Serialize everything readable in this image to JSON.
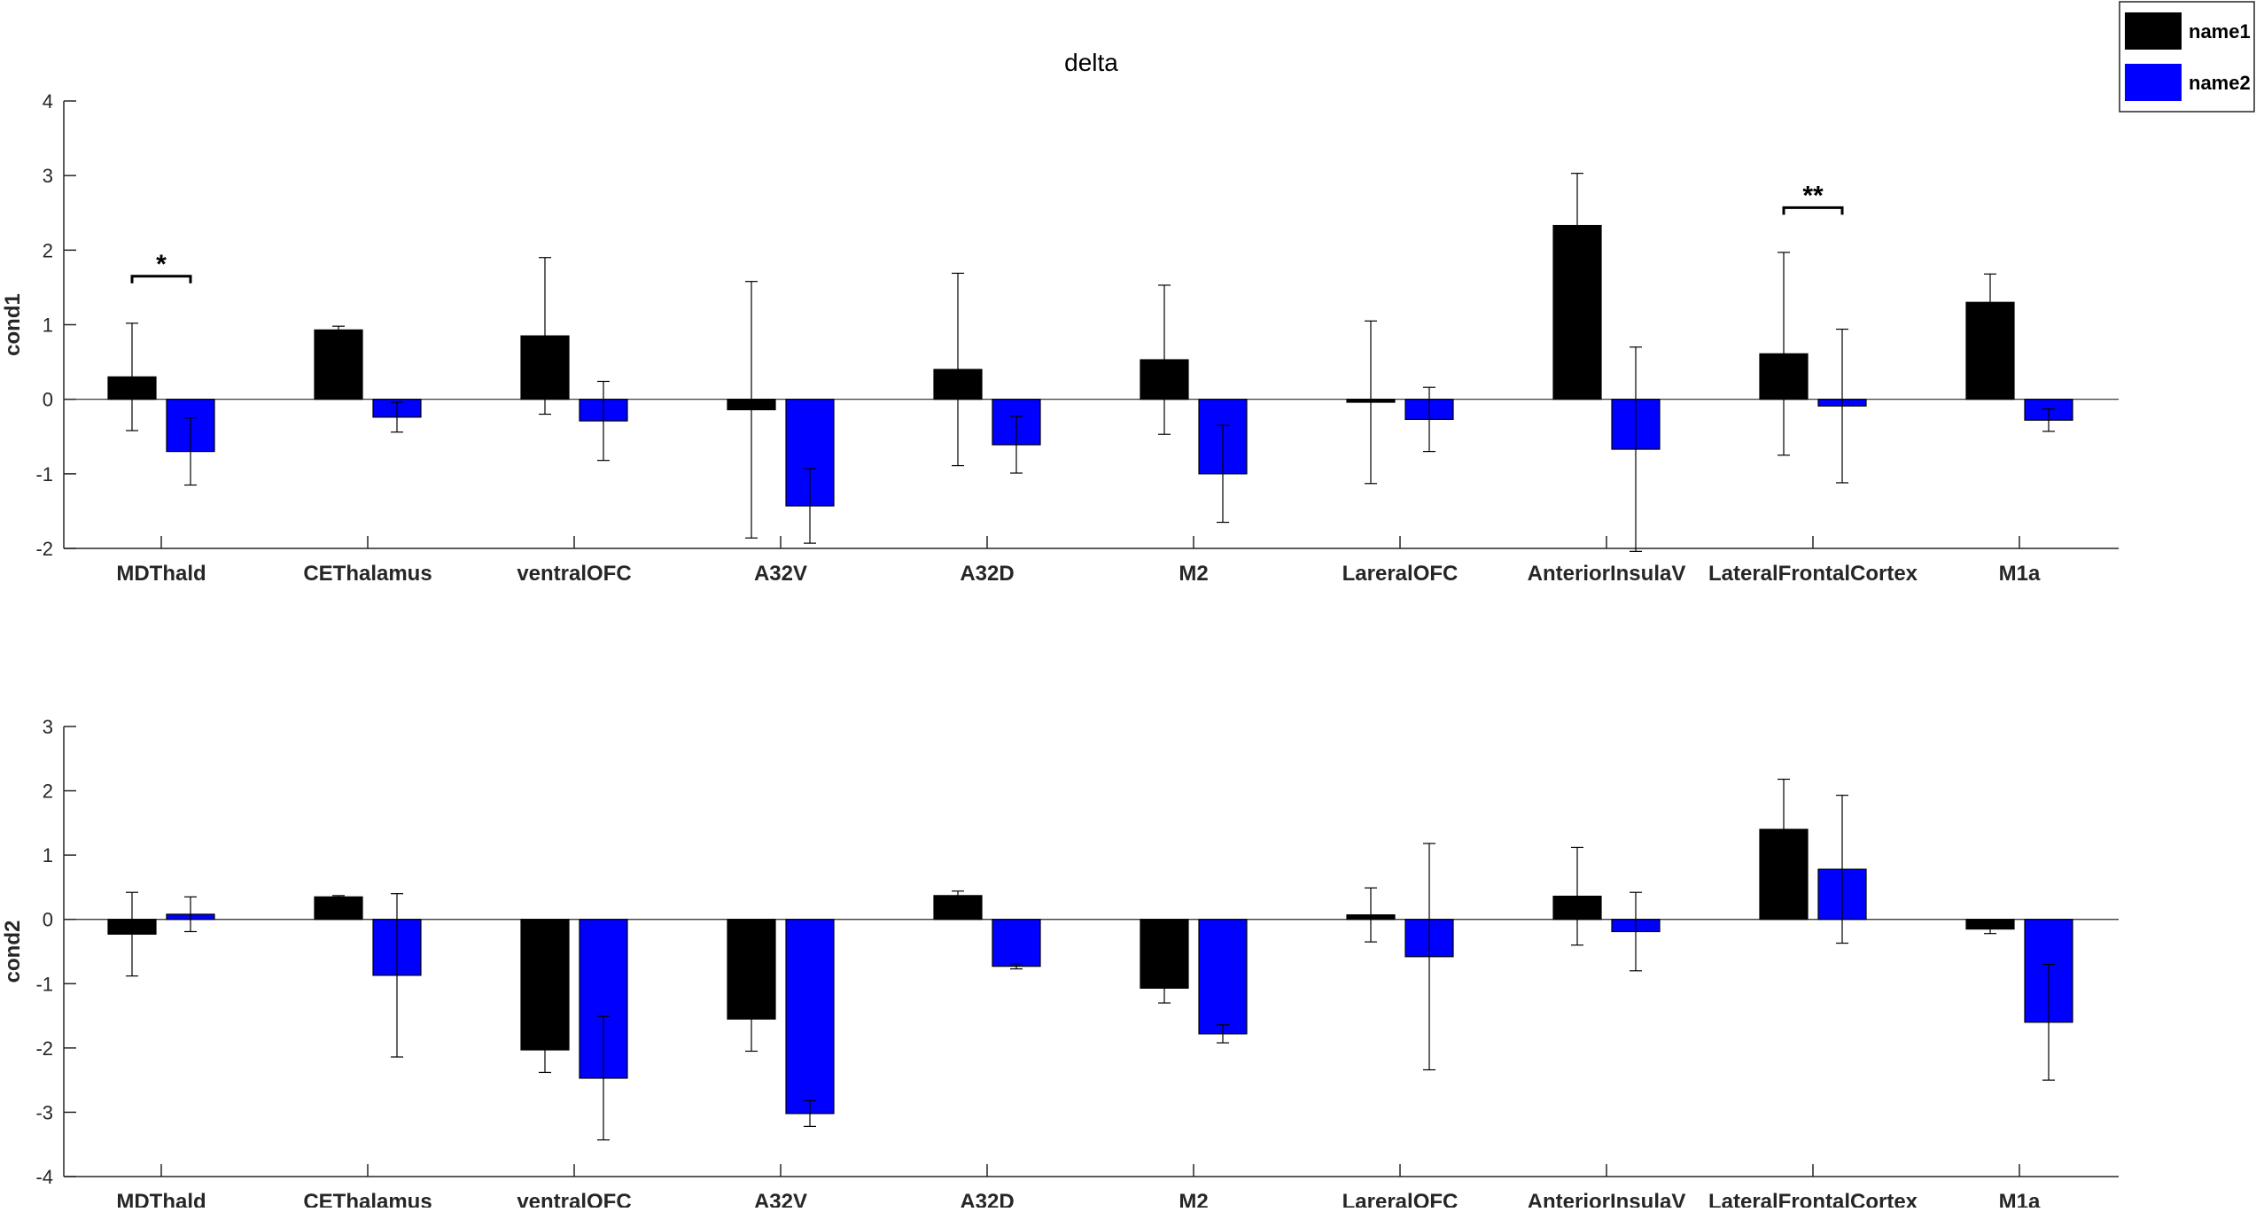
{
  "chart_data": [
    {
      "type": "bar",
      "title": "delta",
      "xlabel": "",
      "ylabel": "cond1",
      "ylim": [
        -2,
        4
      ],
      "yticks": [
        -2,
        -1,
        0,
        1,
        2,
        3,
        4
      ],
      "categories": [
        "MDThald",
        "CEThalamus",
        "ventralOFC",
        "A32V",
        "A32D",
        "M2",
        "LareralOFC",
        "AnteriorInsulaV",
        "LateralFrontalCortex",
        "M1a"
      ],
      "series": [
        {
          "name": "name1",
          "color": "#000000",
          "values": [
            0.3,
            0.93,
            0.85,
            -0.14,
            0.4,
            0.53,
            -0.04,
            2.33,
            0.61,
            1.3
          ],
          "errors": [
            0.72,
            0.05,
            1.05,
            1.72,
            1.29,
            1.0,
            1.09,
            0.7,
            1.36,
            0.38
          ]
        },
        {
          "name": "name2",
          "color": "#0000ff",
          "values": [
            -0.7,
            -0.24,
            -0.29,
            -1.43,
            -0.61,
            -1.0,
            -0.27,
            -0.67,
            -0.09,
            -0.28
          ],
          "errors": [
            0.45,
            0.2,
            0.53,
            0.5,
            0.38,
            0.65,
            0.43,
            1.37,
            1.03,
            0.15
          ]
        }
      ],
      "annotations": [
        {
          "category_index": 0,
          "text": "*",
          "y": 1.65
        },
        {
          "category_index": 8,
          "text": "**",
          "y": 2.57
        }
      ],
      "grid": false,
      "legend": "top-right"
    },
    {
      "type": "bar",
      "title": "",
      "xlabel": "",
      "ylabel": "cond2",
      "ylim": [
        -4,
        3
      ],
      "yticks": [
        -4,
        -3,
        -2,
        -1,
        0,
        1,
        2,
        3
      ],
      "categories": [
        "MDThald",
        "CEThalamus",
        "ventralOFC",
        "A32V",
        "A32D",
        "M2",
        "LareralOFC",
        "AnteriorInsulaV",
        "LateralFrontalCortex",
        "M1a"
      ],
      "series": [
        {
          "name": "name1",
          "color": "#000000",
          "values": [
            -0.23,
            0.35,
            -2.03,
            -1.55,
            0.37,
            -1.07,
            0.07,
            0.36,
            1.4,
            -0.15
          ],
          "errors": [
            0.65,
            0.02,
            0.35,
            0.5,
            0.07,
            0.23,
            0.42,
            0.76,
            0.78,
            0.07
          ]
        },
        {
          "name": "name2",
          "color": "#0000ff",
          "values": [
            0.08,
            -0.87,
            -2.47,
            -3.02,
            -0.73,
            -1.78,
            -0.58,
            -0.19,
            0.78,
            -1.6
          ],
          "errors": [
            0.27,
            1.27,
            0.96,
            0.2,
            0.04,
            0.14,
            1.76,
            0.61,
            1.15,
            0.9
          ]
        }
      ],
      "annotations": [],
      "grid": false,
      "legend": "none"
    }
  ]
}
